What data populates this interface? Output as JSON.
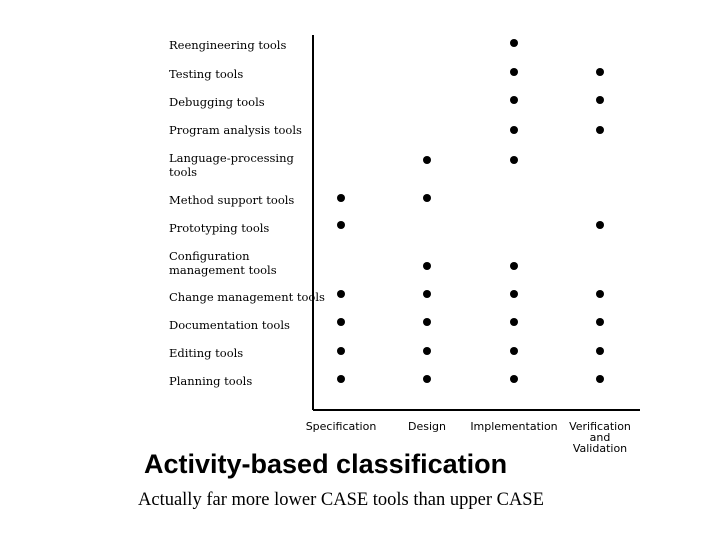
{
  "chart_data": {
    "type": "scatter",
    "title": "Activity-based classification",
    "subtitle": "Actually far more lower CASE tools than upper CASE",
    "categories": [
      "Specification",
      "Design",
      "Implementation",
      "Verification\nand\nValidation"
    ],
    "rows": [
      {
        "label": "Reengineering  tools",
        "activities": [
          0,
          0,
          1,
          0
        ]
      },
      {
        "label": "Testing tools",
        "activities": [
          0,
          0,
          1,
          1
        ]
      },
      {
        "label": "Debugging tools",
        "activities": [
          0,
          0,
          1,
          1
        ]
      },
      {
        "label": "Program analysis tools",
        "activities": [
          0,
          0,
          1,
          1
        ]
      },
      {
        "label": "Language-processing\ntools",
        "activities": [
          0,
          1,
          1,
          0
        ]
      },
      {
        "label": "Method support tools",
        "activities": [
          1,
          1,
          0,
          0
        ]
      },
      {
        "label": "Prototyping tools",
        "activities": [
          1,
          0,
          0,
          1
        ]
      },
      {
        "label": "Configuration\nmanagement tools",
        "activities": [
          0,
          1,
          1,
          0
        ]
      },
      {
        "label": "Change  management tools",
        "activities": [
          1,
          1,
          1,
          1
        ]
      },
      {
        "label": "Documentation tools",
        "activities": [
          1,
          1,
          1,
          1
        ]
      },
      {
        "label": "Editing tools",
        "activities": [
          1,
          1,
          1,
          1
        ]
      },
      {
        "label": "Planning  tools",
        "activities": [
          1,
          1,
          1,
          1
        ]
      }
    ],
    "grid": false,
    "legend": "none"
  }
}
